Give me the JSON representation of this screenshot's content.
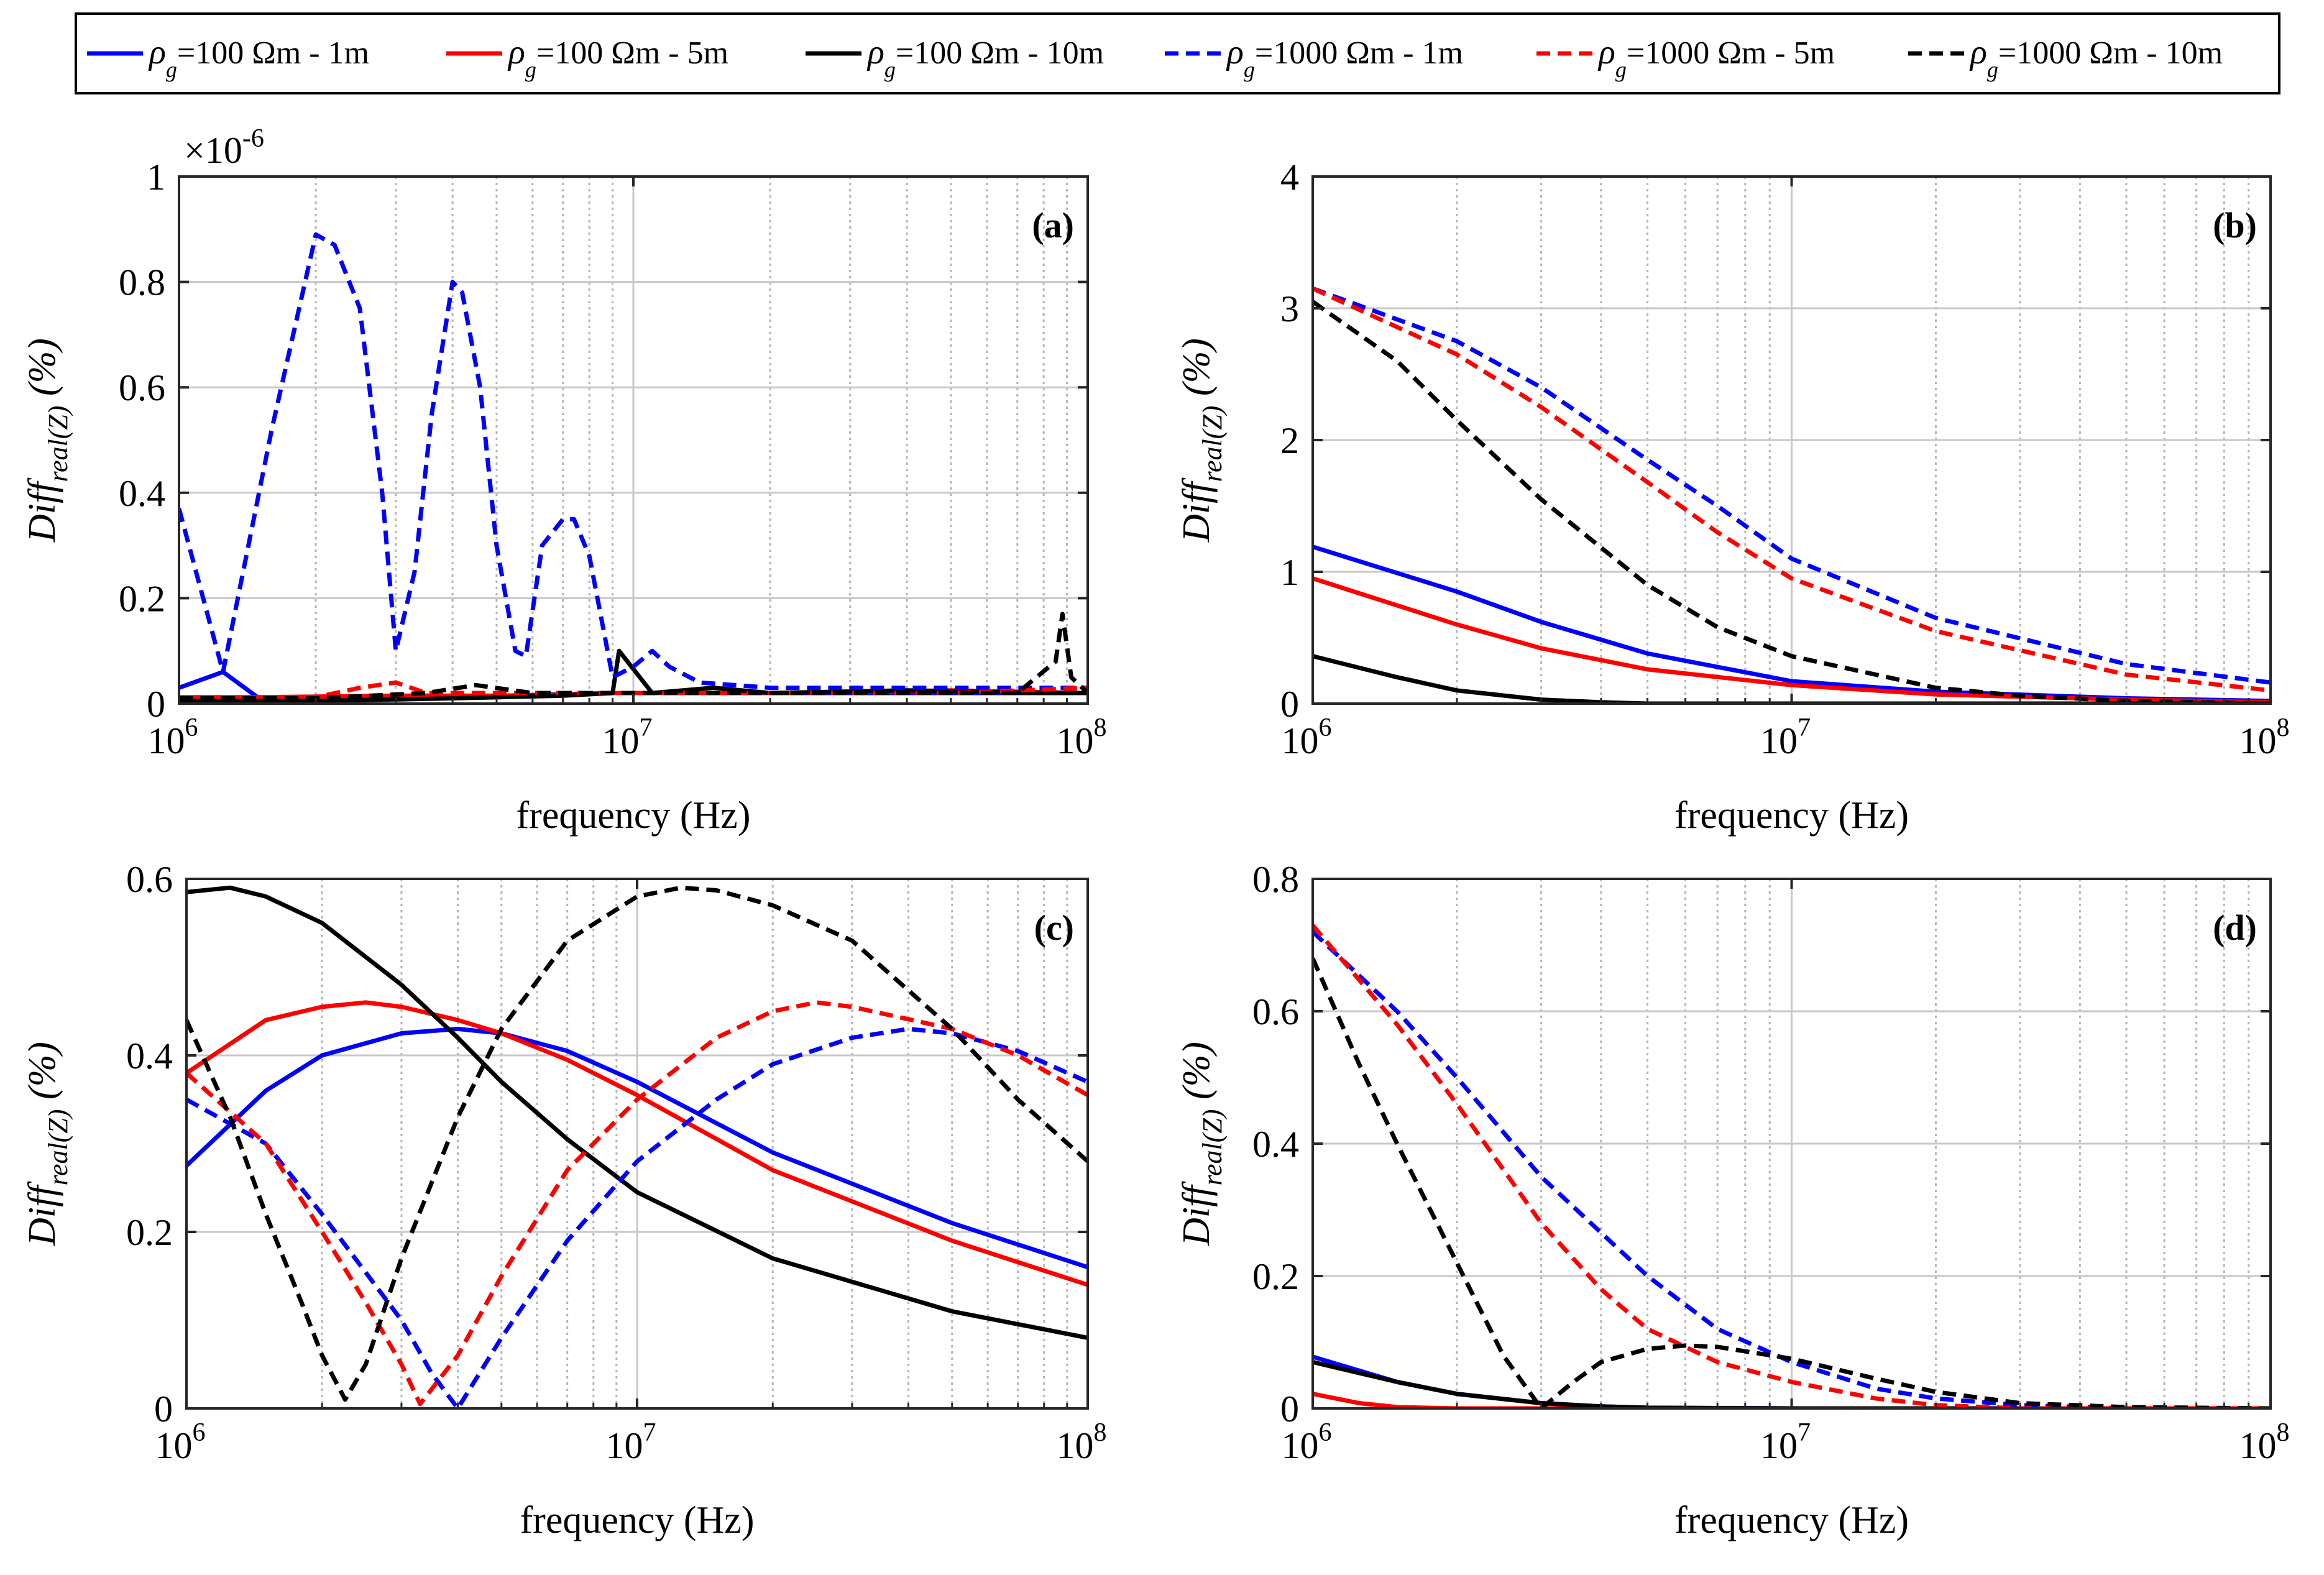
{
  "colors": {
    "blue": "#0000ff",
    "red": "#ff0000",
    "black": "#000000",
    "grid": "#c8c8c8"
  },
  "legend": {
    "rho_symbol": "ρ",
    "rho_subscript": "g",
    "entries": [
      {
        "label": "=100 Ωm - 1m",
        "color": "#0000ff",
        "dashed": false
      },
      {
        "label": "=100 Ωm - 5m",
        "color": "#ff0000",
        "dashed": false
      },
      {
        "label": "=100 Ωm - 10m",
        "color": "#000000",
        "dashed": false
      },
      {
        "label": "=1000 Ωm - 1m",
        "color": "#0000ff",
        "dashed": true
      },
      {
        "label": "=1000 Ωm - 5m",
        "color": "#ff0000",
        "dashed": true
      },
      {
        "label": "=1000 Ωm - 10m",
        "color": "#000000",
        "dashed": true
      }
    ]
  },
  "chart_data": [
    {
      "id": "a",
      "type": "line",
      "panel_label": "(a)",
      "xlabel": "frequency (Hz)",
      "ylabel_main": "Diff",
      "ylabel_sub": "real(Z)",
      "ylabel_unit": "(%)",
      "xscale": "log",
      "xlim": [
        1000000,
        100000000
      ],
      "ylim": [
        0,
        1
      ],
      "exponent_label": "×10",
      "exponent_value": "-6",
      "xticks": [
        {
          "base": "10",
          "exp": "6"
        },
        {
          "base": "10",
          "exp": "7"
        },
        {
          "base": "10",
          "exp": "8"
        }
      ],
      "yticks": [
        "0",
        "0.2",
        "0.4",
        "0.6",
        "0.8",
        "1"
      ],
      "series": [
        {
          "name": "ρg=100 Ωm - 1m",
          "color": "#0000ff",
          "dashed": false,
          "x": [
            1000000.0,
            1250000.0,
            1500000.0,
            3000000.0,
            9000000.0,
            20000000.0,
            50000000.0,
            100000000.0
          ],
          "y": [
            0.03,
            0.06,
            0.01,
            0.01,
            0.02,
            0.02,
            0.02,
            0.02
          ]
        },
        {
          "name": "ρg=100 Ωm - 5m",
          "color": "#ff0000",
          "dashed": false,
          "x": [
            1000000.0,
            1500000.0,
            3000000.0,
            6000000.0,
            9000000.0,
            20000000.0,
            50000000.0,
            100000000.0
          ],
          "y": [
            0.012,
            0.012,
            0.015,
            0.015,
            0.02,
            0.02,
            0.025,
            0.02
          ]
        },
        {
          "name": "ρg=100 Ωm - 10m",
          "color": "#000000",
          "dashed": false,
          "x": [
            1000000.0,
            2000000.0,
            4000000.0,
            7000000.0,
            9000000.0,
            9300000.0,
            11000000.0,
            15000000.0,
            20000000.0,
            40000000.0,
            80000000.0,
            100000000.0
          ],
          "y": [
            0.005,
            0.005,
            0.01,
            0.015,
            0.02,
            0.1,
            0.02,
            0.03,
            0.02,
            0.025,
            0.02,
            0.02
          ]
        },
        {
          "name": "ρg=1000 Ωm - 1m",
          "color": "#0000ff",
          "dashed": true,
          "x": [
            1000000.0,
            1250000.0,
            1600000.0,
            2000000.0,
            2200000.0,
            2500000.0,
            2800000.0,
            3000000.0,
            3300000.0,
            3600000.0,
            4000000.0,
            4200000.0,
            4600000.0,
            5000000.0,
            5500000.0,
            5800000.0,
            6300000.0,
            7000000.0,
            7400000.0,
            8000000.0,
            9000000.0,
            10000000.0,
            11000000.0,
            12000000.0,
            14000000.0,
            20000000.0,
            50000000.0,
            100000000.0
          ],
          "y": [
            0.37,
            0.06,
            0.52,
            0.89,
            0.87,
            0.75,
            0.4,
            0.1,
            0.25,
            0.55,
            0.8,
            0.78,
            0.6,
            0.3,
            0.1,
            0.09,
            0.3,
            0.35,
            0.35,
            0.28,
            0.05,
            0.07,
            0.1,
            0.07,
            0.04,
            0.03,
            0.03,
            0.03
          ]
        },
        {
          "name": "ρg=1000 Ωm - 5m",
          "color": "#ff0000",
          "dashed": true,
          "x": [
            1000000.0,
            2000000.0,
            2500000.0,
            3000000.0,
            3500000.0,
            5000000.0,
            8000000.0,
            10000000.0,
            20000000.0,
            50000000.0,
            100000000.0
          ],
          "y": [
            0.01,
            0.012,
            0.03,
            0.04,
            0.02,
            0.02,
            0.02,
            0.02,
            0.02,
            0.02,
            0.03
          ]
        },
        {
          "name": "ρg=1000 Ωm - 10m",
          "color": "#000000",
          "dashed": true,
          "x": [
            1000000.0,
            2000000.0,
            3500000.0,
            4500000.0,
            6000000.0,
            8000000.0,
            10000000.0,
            20000000.0,
            50000000.0,
            70000000.0,
            85000000.0,
            88000000.0,
            92000000.0,
            100000000.0
          ],
          "y": [
            0.01,
            0.01,
            0.02,
            0.035,
            0.02,
            0.02,
            0.02,
            0.02,
            0.02,
            0.02,
            0.08,
            0.17,
            0.05,
            0.02
          ]
        }
      ]
    },
    {
      "id": "b",
      "type": "line",
      "panel_label": "(b)",
      "xlabel": "frequency (Hz)",
      "ylabel_main": "Diff",
      "ylabel_sub": "real(Z)",
      "ylabel_unit": "(%)",
      "xscale": "log",
      "xlim": [
        1000000,
        100000000
      ],
      "ylim": [
        0,
        4
      ],
      "xticks": [
        {
          "base": "10",
          "exp": "6"
        },
        {
          "base": "10",
          "exp": "7"
        },
        {
          "base": "10",
          "exp": "8"
        }
      ],
      "yticks": [
        "0",
        "1",
        "2",
        "3",
        "4"
      ],
      "series": [
        {
          "name": "ρg=100 Ωm - 1m",
          "color": "#0000ff",
          "dashed": false,
          "x": [
            1000000.0,
            2000000.0,
            3000000.0,
            5000000.0,
            10000000.0,
            20000000.0,
            50000000.0,
            100000000.0
          ],
          "y": [
            1.19,
            0.85,
            0.62,
            0.38,
            0.17,
            0.09,
            0.04,
            0.02
          ]
        },
        {
          "name": "ρg=100 Ωm - 5m",
          "color": "#ff0000",
          "dashed": false,
          "x": [
            1000000.0,
            2000000.0,
            3000000.0,
            5000000.0,
            10000000.0,
            20000000.0,
            50000000.0,
            100000000.0
          ],
          "y": [
            0.95,
            0.6,
            0.42,
            0.26,
            0.14,
            0.07,
            0.03,
            0.01
          ]
        },
        {
          "name": "ρg=100 Ωm - 10m",
          "color": "#000000",
          "dashed": false,
          "x": [
            1000000.0,
            1500000.0,
            2000000.0,
            3000000.0,
            4000000.0,
            5000000.0,
            10000000.0,
            100000000.0
          ],
          "y": [
            0.36,
            0.2,
            0.1,
            0.03,
            0.01,
            0.0,
            0.0,
            0.0
          ]
        },
        {
          "name": "ρg=1000 Ωm - 1m",
          "color": "#0000ff",
          "dashed": true,
          "x": [
            1000000.0,
            2000000.0,
            3000000.0,
            5000000.0,
            7000000.0,
            10000000.0,
            20000000.0,
            50000000.0,
            100000000.0
          ],
          "y": [
            3.15,
            2.75,
            2.4,
            1.85,
            1.5,
            1.1,
            0.65,
            0.3,
            0.16
          ]
        },
        {
          "name": "ρg=1000 Ωm - 5m",
          "color": "#ff0000",
          "dashed": true,
          "x": [
            1000000.0,
            2000000.0,
            3000000.0,
            5000000.0,
            7000000.0,
            10000000.0,
            20000000.0,
            50000000.0,
            100000000.0
          ],
          "y": [
            3.15,
            2.65,
            2.25,
            1.68,
            1.3,
            0.95,
            0.55,
            0.22,
            0.1
          ]
        },
        {
          "name": "ρg=1000 Ωm - 10m",
          "color": "#000000",
          "dashed": true,
          "x": [
            1000000.0,
            1500000.0,
            2000000.0,
            3000000.0,
            5000000.0,
            7000000.0,
            10000000.0,
            20000000.0,
            30000000.0,
            50000000.0,
            100000000.0
          ],
          "y": [
            3.05,
            2.6,
            2.15,
            1.55,
            0.9,
            0.58,
            0.36,
            0.12,
            0.06,
            0.02,
            0.0
          ]
        }
      ]
    },
    {
      "id": "c",
      "type": "line",
      "panel_label": "(c)",
      "xlabel": "frequency (Hz)",
      "ylabel_main": "Diff",
      "ylabel_sub": "real(Z)",
      "ylabel_unit": "(%)",
      "xscale": "log",
      "xlim": [
        1000000,
        100000000
      ],
      "ylim": [
        0,
        0.6
      ],
      "xticks": [
        {
          "base": "10",
          "exp": "6"
        },
        {
          "base": "10",
          "exp": "7"
        },
        {
          "base": "10",
          "exp": "8"
        }
      ],
      "yticks": [
        "0",
        "0.2",
        "0.4",
        "0.6"
      ],
      "series": [
        {
          "name": "ρg=100 Ωm - 1m",
          "color": "#0000ff",
          "dashed": false,
          "x": [
            1000000.0,
            1500000.0,
            2000000.0,
            3000000.0,
            4000000.0,
            5000000.0,
            7000000.0,
            10000000.0,
            20000000.0,
            50000000.0,
            100000000.0
          ],
          "y": [
            0.275,
            0.36,
            0.4,
            0.425,
            0.43,
            0.425,
            0.405,
            0.37,
            0.29,
            0.21,
            0.16
          ]
        },
        {
          "name": "ρg=100 Ωm - 5m",
          "color": "#ff0000",
          "dashed": false,
          "x": [
            1000000.0,
            1500000.0,
            2000000.0,
            2500000.0,
            3000000.0,
            4000000.0,
            5000000.0,
            7000000.0,
            10000000.0,
            20000000.0,
            50000000.0,
            100000000.0
          ],
          "y": [
            0.38,
            0.44,
            0.455,
            0.46,
            0.455,
            0.44,
            0.425,
            0.395,
            0.355,
            0.27,
            0.19,
            0.14
          ]
        },
        {
          "name": "ρg=100 Ωm - 10m",
          "color": "#000000",
          "dashed": false,
          "x": [
            1000000.0,
            1250000.0,
            1500000.0,
            2000000.0,
            3000000.0,
            4000000.0,
            5000000.0,
            7000000.0,
            10000000.0,
            20000000.0,
            50000000.0,
            100000000.0
          ],
          "y": [
            0.585,
            0.59,
            0.58,
            0.55,
            0.48,
            0.42,
            0.37,
            0.305,
            0.245,
            0.17,
            0.11,
            0.08
          ]
        },
        {
          "name": "ρg=1000 Ωm - 1m",
          "color": "#0000ff",
          "dashed": true,
          "x": [
            1000000.0,
            1500000.0,
            2000000.0,
            3000000.0,
            3500000.0,
            4000000.0,
            5000000.0,
            7000000.0,
            10000000.0,
            15000000.0,
            20000000.0,
            30000000.0,
            40000000.0,
            50000000.0,
            70000000.0,
            100000000.0
          ],
          "y": [
            0.35,
            0.3,
            0.22,
            0.1,
            0.04,
            0.0,
            0.08,
            0.19,
            0.28,
            0.35,
            0.39,
            0.42,
            0.43,
            0.425,
            0.405,
            0.37
          ]
        },
        {
          "name": "ρg=1000 Ωm - 5m",
          "color": "#ff0000",
          "dashed": true,
          "x": [
            1000000.0,
            1500000.0,
            2000000.0,
            2500000.0,
            3000000.0,
            3300000.0,
            4000000.0,
            5000000.0,
            7000000.0,
            10000000.0,
            15000000.0,
            20000000.0,
            25000000.0,
            30000000.0,
            50000000.0,
            70000000.0,
            100000000.0
          ],
          "y": [
            0.38,
            0.3,
            0.2,
            0.12,
            0.05,
            0.005,
            0.06,
            0.15,
            0.27,
            0.35,
            0.42,
            0.45,
            0.46,
            0.455,
            0.43,
            0.4,
            0.355
          ]
        },
        {
          "name": "ρg=1000 Ωm - 10m",
          "color": "#000000",
          "dashed": true,
          "x": [
            1000000.0,
            1250000.0,
            1500000.0,
            1800000.0,
            2000000.0,
            2250000.0,
            2500000.0,
            3000000.0,
            4000000.0,
            5000000.0,
            7000000.0,
            10000000.0,
            12500000.0,
            15000000.0,
            20000000.0,
            30000000.0,
            50000000.0,
            70000000.0,
            100000000.0
          ],
          "y": [
            0.44,
            0.33,
            0.22,
            0.12,
            0.06,
            0.01,
            0.05,
            0.17,
            0.33,
            0.43,
            0.53,
            0.58,
            0.59,
            0.587,
            0.57,
            0.53,
            0.43,
            0.35,
            0.28
          ]
        }
      ]
    },
    {
      "id": "d",
      "type": "line",
      "panel_label": "(d)",
      "xlabel": "frequency (Hz)",
      "ylabel_main": "Diff",
      "ylabel_sub": "real(Z)",
      "ylabel_unit": "(%)",
      "xscale": "log",
      "xlim": [
        1000000,
        100000000
      ],
      "ylim": [
        0,
        0.8
      ],
      "xticks": [
        {
          "base": "10",
          "exp": "6"
        },
        {
          "base": "10",
          "exp": "7"
        },
        {
          "base": "10",
          "exp": "8"
        }
      ],
      "yticks": [
        "0",
        "0.2",
        "0.4",
        "0.6",
        "0.8"
      ],
      "series": [
        {
          "name": "ρg=100 Ωm - 1m",
          "color": "#0000ff",
          "dashed": false,
          "x": [
            1000000.0,
            1500000.0,
            2000000.0,
            3000000.0,
            4000000.0,
            5000000.0,
            10000000.0,
            100000000.0
          ],
          "y": [
            0.078,
            0.04,
            0.022,
            0.008,
            0.003,
            0.001,
            0.0,
            0.0
          ]
        },
        {
          "name": "ρg=100 Ωm - 5m",
          "color": "#ff0000",
          "dashed": false,
          "x": [
            1000000.0,
            1250000.0,
            1500000.0,
            2000000.0,
            3000000.0,
            10000000.0,
            100000000.0
          ],
          "y": [
            0.022,
            0.008,
            0.002,
            0.0,
            0.0,
            0.0,
            0.0
          ]
        },
        {
          "name": "ρg=100 Ωm - 10m",
          "color": "#000000",
          "dashed": false,
          "x": [
            1000000.0,
            1500000.0,
            2000000.0,
            3000000.0,
            4000000.0,
            5000000.0,
            10000000.0,
            100000000.0
          ],
          "y": [
            0.07,
            0.04,
            0.022,
            0.008,
            0.003,
            0.001,
            0.0,
            0.0
          ]
        },
        {
          "name": "ρg=1000 Ωm - 1m",
          "color": "#0000ff",
          "dashed": true,
          "x": [
            1000000.0,
            1500000.0,
            2000000.0,
            3000000.0,
            5000000.0,
            7000000.0,
            10000000.0,
            15000000.0,
            20000000.0,
            30000000.0,
            50000000.0,
            100000000.0
          ],
          "y": [
            0.72,
            0.6,
            0.5,
            0.35,
            0.2,
            0.12,
            0.07,
            0.03,
            0.015,
            0.005,
            0.0,
            0.0
          ]
        },
        {
          "name": "ρg=1000 Ωm - 5m",
          "color": "#ff0000",
          "dashed": true,
          "x": [
            1000000.0,
            1500000.0,
            2000000.0,
            3000000.0,
            4000000.0,
            5000000.0,
            7000000.0,
            10000000.0,
            15000000.0,
            20000000.0,
            30000000.0,
            100000000.0
          ],
          "y": [
            0.73,
            0.58,
            0.46,
            0.28,
            0.18,
            0.12,
            0.07,
            0.04,
            0.015,
            0.005,
            0.0,
            0.0
          ]
        },
        {
          "name": "ρg=1000 Ωm - 10m",
          "color": "#000000",
          "dashed": true,
          "x": [
            1000000.0,
            1250000.0,
            1500000.0,
            2000000.0,
            2500000.0,
            3000000.0,
            3500000.0,
            4000000.0,
            5000000.0,
            6000000.0,
            7000000.0,
            10000000.0,
            15000000.0,
            20000000.0,
            30000000.0,
            50000000.0,
            100000000.0
          ],
          "y": [
            0.68,
            0.52,
            0.4,
            0.22,
            0.08,
            0.0,
            0.04,
            0.07,
            0.09,
            0.095,
            0.093,
            0.075,
            0.045,
            0.025,
            0.008,
            0.002,
            0.0
          ]
        }
      ]
    }
  ]
}
